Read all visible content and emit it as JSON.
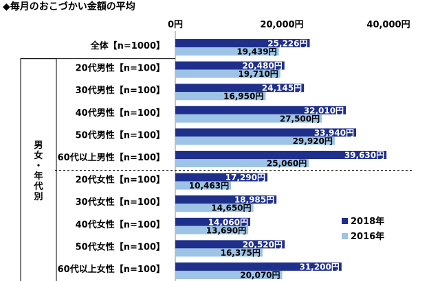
{
  "chart_data": {
    "type": "bar",
    "orientation": "horizontal",
    "title": "◆毎月のおこづかい金額の平均",
    "x_ticks": [
      "0円",
      "20,000円",
      "40,000円"
    ],
    "xlim": [
      0,
      40000
    ],
    "group_label": "男女・年代別",
    "categories": [
      "全体【n=1000】",
      "20代男性【n=100】",
      "30代男性【n=100】",
      "40代男性【n=100】",
      "50代男性【n=100】",
      "60代以上男性【n=100】",
      "20代女性【n=100】",
      "30代女性【n=100】",
      "40代女性【n=100】",
      "50代女性【n=100】",
      "60代以上女性【n=100】"
    ],
    "series": [
      {
        "name": "2018年",
        "color": "#1f2f8c",
        "values": [
          25226,
          20480,
          24145,
          32010,
          33940,
          39630,
          17290,
          18985,
          14060,
          20520,
          31200
        ],
        "labels": [
          "25,226円",
          "20,480円",
          "24,145円",
          "32,010円",
          "33,940円",
          "39,630円",
          "17,290円",
          "18,985円",
          "14,060円",
          "20,520円",
          "31,200円"
        ]
      },
      {
        "name": "2016年",
        "color": "#9dc3e6",
        "values": [
          19439,
          19710,
          16950,
          27500,
          29920,
          25060,
          10463,
          14650,
          13690,
          16375,
          20070
        ],
        "labels": [
          "19,439円",
          "19,710円",
          "16,950円",
          "27,500円",
          "29,920円",
          "25,060円",
          "10,463円",
          "14,650円",
          "13,690円",
          "16,375円",
          "20,070円"
        ]
      }
    ],
    "legend_position": "right"
  }
}
